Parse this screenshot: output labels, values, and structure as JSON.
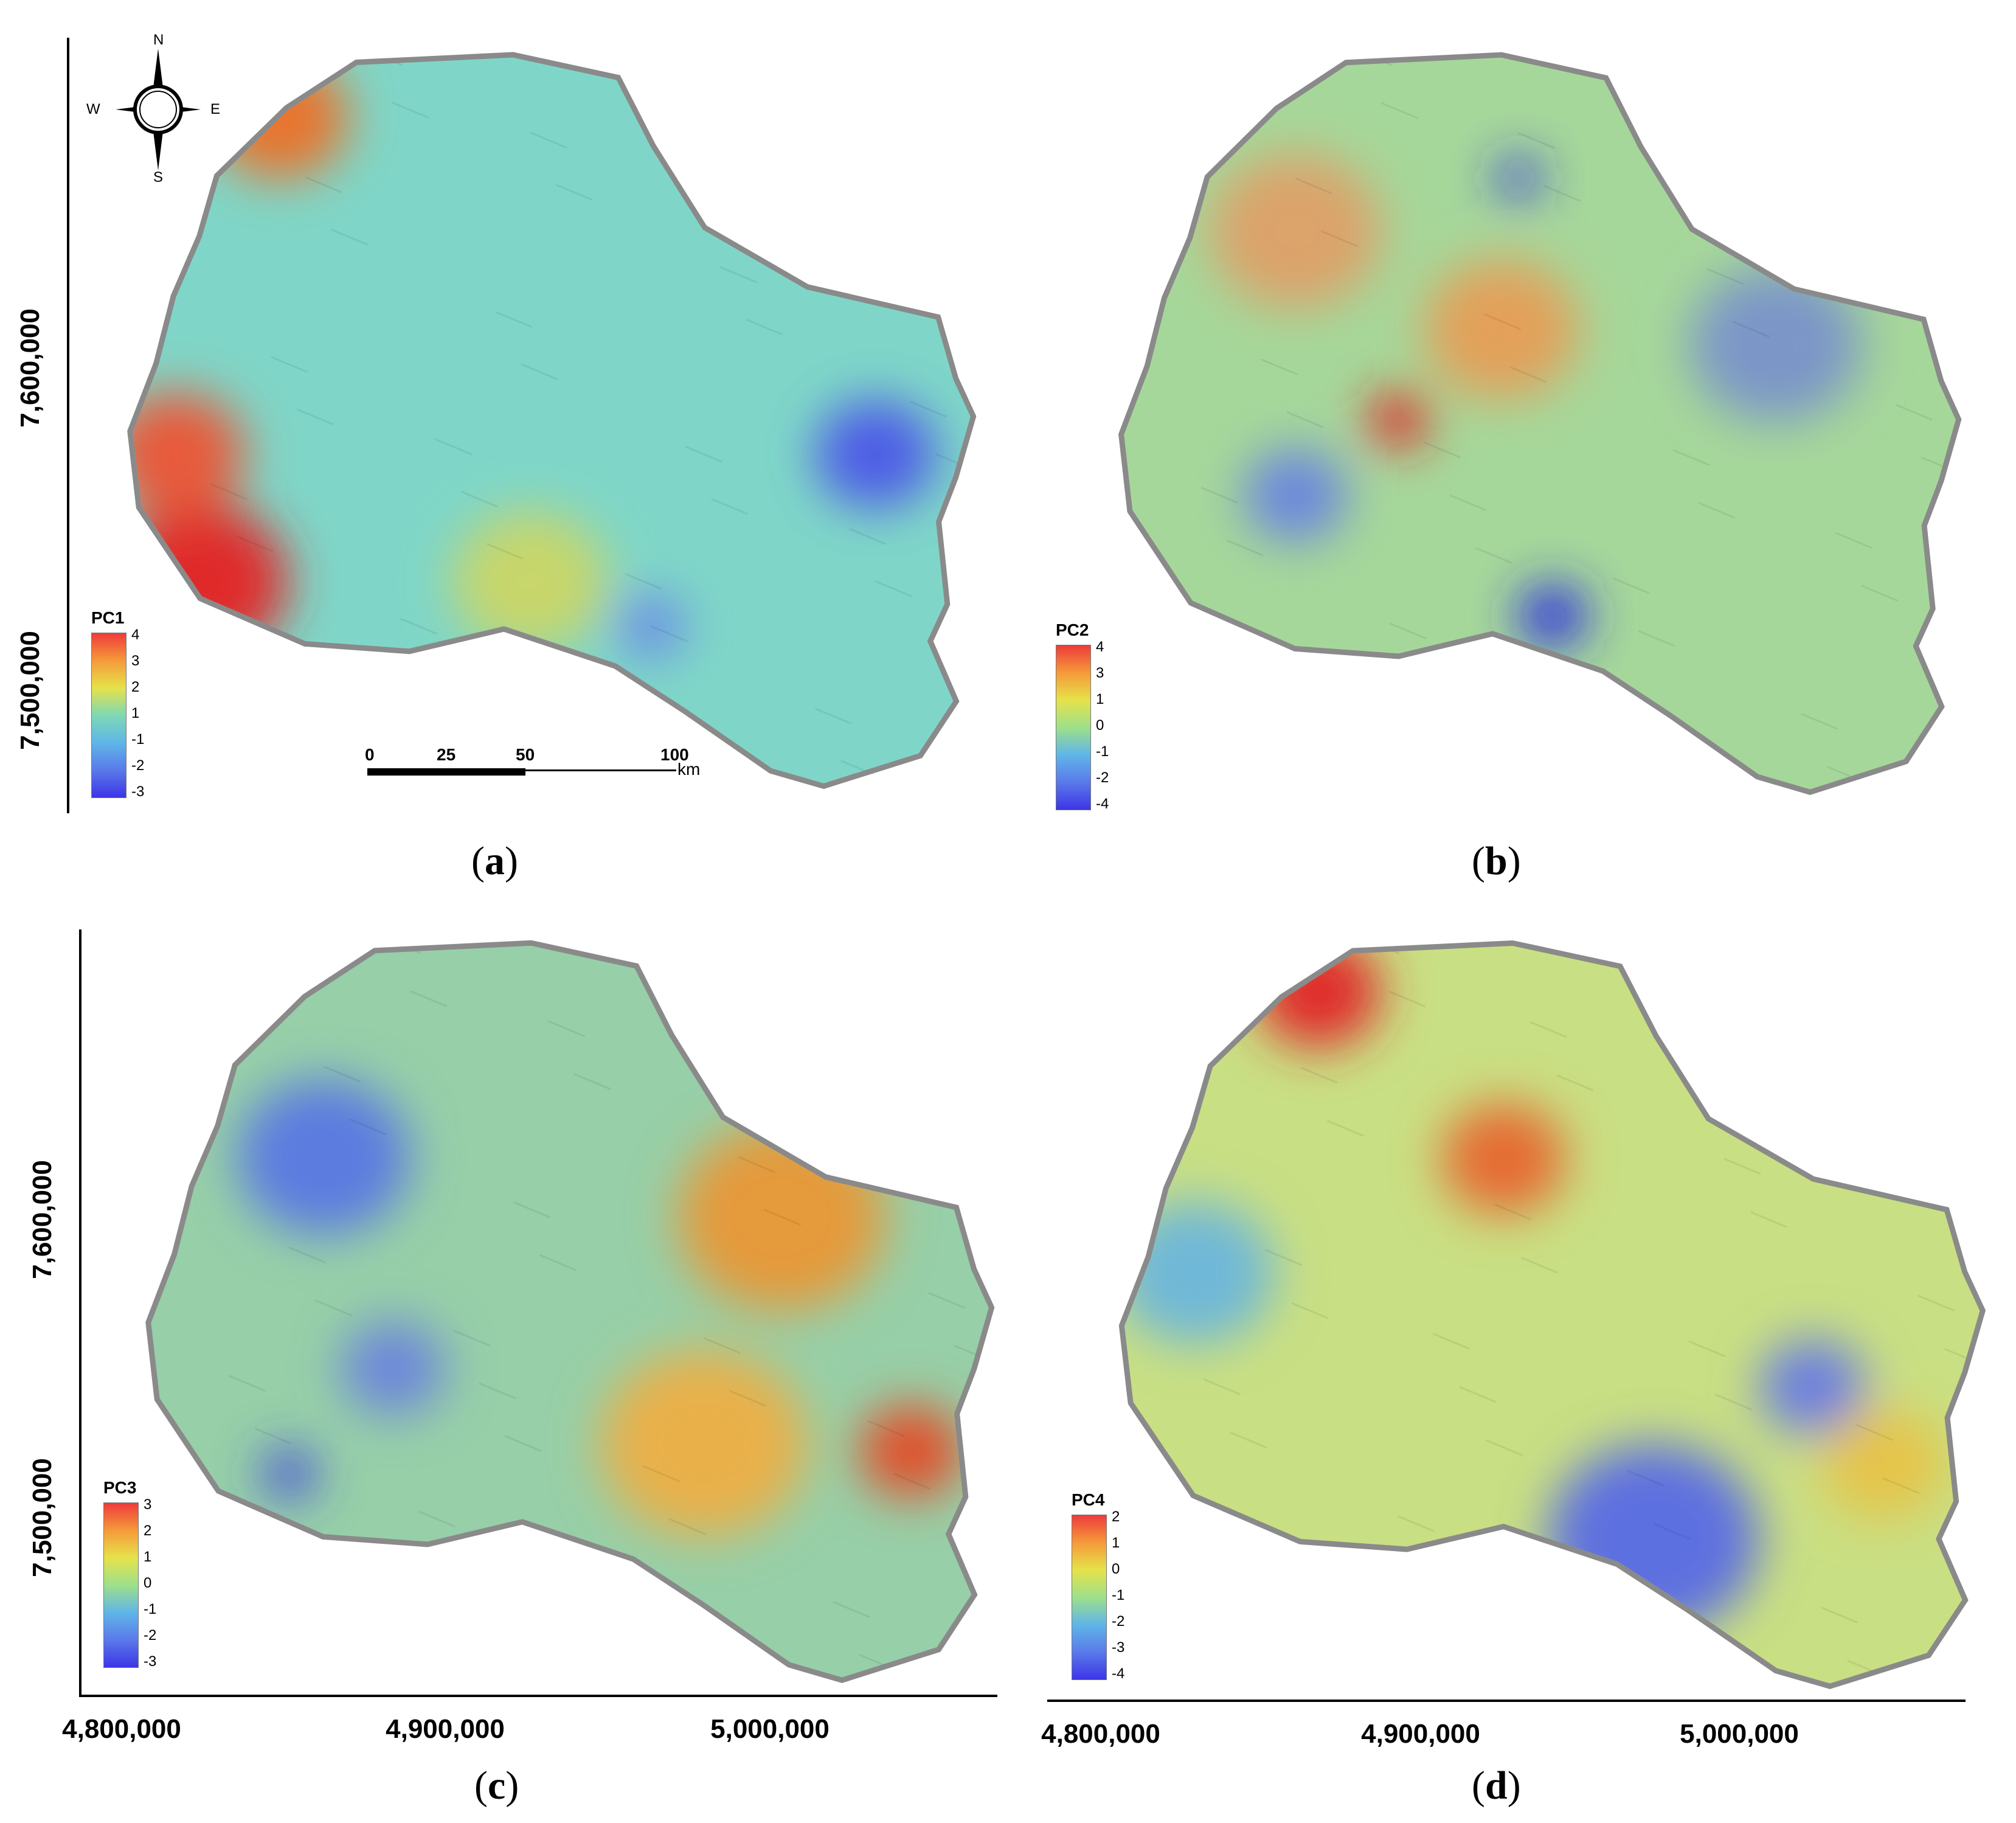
{
  "compass": {
    "n": "N",
    "s": "S",
    "e": "E",
    "w": "W"
  },
  "scale_bar": {
    "ticks": [
      "0",
      "25",
      "50",
      "100"
    ],
    "unit": "km"
  },
  "panels": [
    {
      "id": "a",
      "caption_open": "(",
      "caption_letter": "a",
      "caption_close": ")",
      "legend": {
        "title": "PC1",
        "ticks": [
          "4",
          "3",
          "2",
          "1",
          "-1",
          "-2",
          "-3"
        ],
        "colors": [
          "#ee3b3b",
          "#f59a3a",
          "#e6e24a",
          "#7ed8b4",
          "#5fb6e8",
          "#5a7aea",
          "#3d35e6"
        ]
      },
      "y_axis": [
        "7,600,000",
        "7,500,000"
      ],
      "x_axis": [],
      "base_color": "#7fd6c8",
      "blobs": [
        {
          "cx": 0.1,
          "cy": 0.72,
          "r": 0.1,
          "color": "#e02a2a"
        },
        {
          "cx": 0.07,
          "cy": 0.55,
          "r": 0.08,
          "color": "#e85a3a"
        },
        {
          "cx": 0.19,
          "cy": 0.1,
          "r": 0.08,
          "color": "#e8742e"
        },
        {
          "cx": 0.88,
          "cy": 0.55,
          "r": 0.07,
          "color": "#4d5de6"
        },
        {
          "cx": 0.48,
          "cy": 0.72,
          "r": 0.09,
          "color": "#c8d66a"
        },
        {
          "cx": 0.62,
          "cy": 0.78,
          "r": 0.04,
          "color": "#6a8be8"
        }
      ]
    },
    {
      "id": "b",
      "caption_open": "(",
      "caption_letter": "b",
      "caption_close": ")",
      "legend": {
        "title": "PC2",
        "ticks": [
          "4",
          "3",
          "1",
          "0",
          "-1",
          "-2",
          "-4"
        ],
        "colors": [
          "#ee3b3b",
          "#f59a3a",
          "#e6e24a",
          "#9ee08a",
          "#5fb6e8",
          "#5a7aea",
          "#3d35e6"
        ]
      },
      "y_axis": [],
      "x_axis": [],
      "base_color": "#a6d79a",
      "blobs": [
        {
          "cx": 0.34,
          "cy": 0.5,
          "r": 0.035,
          "color": "#e02020"
        },
        {
          "cx": 0.52,
          "cy": 0.76,
          "r": 0.04,
          "color": "#2a2ae0"
        },
        {
          "cx": 0.48,
          "cy": 0.18,
          "r": 0.025,
          "color": "#2a2ae0"
        },
        {
          "cx": 0.22,
          "cy": 0.6,
          "r": 0.06,
          "color": "#6a86de"
        },
        {
          "cx": 0.78,
          "cy": 0.4,
          "r": 0.1,
          "color": "#7c96c8"
        },
        {
          "cx": 0.46,
          "cy": 0.38,
          "r": 0.09,
          "color": "#e3a05a"
        },
        {
          "cx": 0.22,
          "cy": 0.25,
          "r": 0.1,
          "color": "#dca36a"
        }
      ]
    },
    {
      "id": "c",
      "caption_open": "(",
      "caption_letter": "c",
      "caption_close": ")",
      "legend": {
        "title": "PC3",
        "ticks": [
          "3",
          "2",
          "1",
          "0",
          "-1",
          "-2",
          "-3"
        ],
        "colors": [
          "#ee3b3b",
          "#f59a3a",
          "#e6e24a",
          "#9ee08a",
          "#5fb6e8",
          "#5a7aea",
          "#3d35e6"
        ]
      },
      "y_axis": [
        "7,600,000",
        "7,500,000"
      ],
      "x_axis": [
        "4,800,000",
        "4,900,000",
        "5,000,000"
      ],
      "base_color": "#97cfa8",
      "blobs": [
        {
          "cx": 0.22,
          "cy": 0.3,
          "r": 0.1,
          "color": "#5c7be0"
        },
        {
          "cx": 0.75,
          "cy": 0.38,
          "r": 0.12,
          "color": "#e59a3a"
        },
        {
          "cx": 0.66,
          "cy": 0.68,
          "r": 0.12,
          "color": "#e9b04a"
        },
        {
          "cx": 0.9,
          "cy": 0.69,
          "r": 0.06,
          "color": "#e0502a"
        },
        {
          "cx": 0.3,
          "cy": 0.58,
          "r": 0.06,
          "color": "#6c86da"
        },
        {
          "cx": 0.18,
          "cy": 0.72,
          "r": 0.03,
          "color": "#3a3ae0"
        }
      ]
    },
    {
      "id": "d",
      "caption_open": "(",
      "caption_letter": "d",
      "caption_close": ")",
      "legend": {
        "title": "PC4",
        "ticks": [
          "2",
          "1",
          "0",
          "-1",
          "-2",
          "-3",
          "-4"
        ],
        "colors": [
          "#ee3b3b",
          "#f59a3a",
          "#e6e24a",
          "#9ee08a",
          "#5fb6e8",
          "#5a7aea",
          "#3d35e6"
        ]
      },
      "y_axis": [],
      "x_axis": [
        "4,800,000",
        "4,900,000",
        "5,000,000"
      ],
      "base_color": "#c9df83",
      "blobs": [
        {
          "cx": 0.24,
          "cy": 0.08,
          "r": 0.07,
          "color": "#e02a2a"
        },
        {
          "cx": 0.45,
          "cy": 0.3,
          "r": 0.07,
          "color": "#e66a30"
        },
        {
          "cx": 0.1,
          "cy": 0.45,
          "r": 0.09,
          "color": "#6fb8d8"
        },
        {
          "cx": 0.62,
          "cy": 0.8,
          "r": 0.12,
          "color": "#5d6fe0"
        },
        {
          "cx": 0.8,
          "cy": 0.6,
          "r": 0.06,
          "color": "#6b7ee0"
        },
        {
          "cx": 0.88,
          "cy": 0.7,
          "r": 0.07,
          "color": "#e6c44a"
        }
      ]
    }
  ]
}
